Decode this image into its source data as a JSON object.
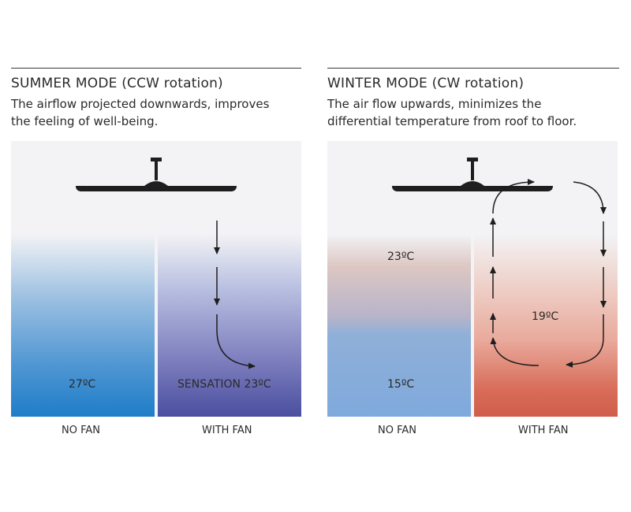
{
  "summer": {
    "title": "SUMMER MODE (CCW rotation)",
    "description_line1": "The airflow projected downwards, improves",
    "description_line2": "the feeling of well-being.",
    "no_fan_temp": "27ºC",
    "with_fan_temp": "SENSATION 23ºC",
    "no_fan_label": "NO FAN",
    "with_fan_label": "WITH FAN"
  },
  "winter": {
    "title": "WINTER MODE (CW rotation)",
    "description_line1": "The air flow upwards, minimizes the",
    "description_line2": "differential temperature from roof to floor.",
    "no_fan_top_temp": "23ºC",
    "no_fan_bottom_temp": "15ºC",
    "with_fan_temp": "19ºC",
    "no_fan_label": "NO FAN",
    "with_fan_label": "WITH FAN"
  },
  "colors": {
    "summer_no_fan": "#1f7dc8",
    "summer_with_fan": "#4a4f9f",
    "winter_cold": "#7fa9dc",
    "winter_warm": "#cf5e4a",
    "fan": "#1e1e1e"
  },
  "icons": {
    "fan": "ceiling-fan-icon",
    "arrow": "airflow-arrow-icon"
  }
}
